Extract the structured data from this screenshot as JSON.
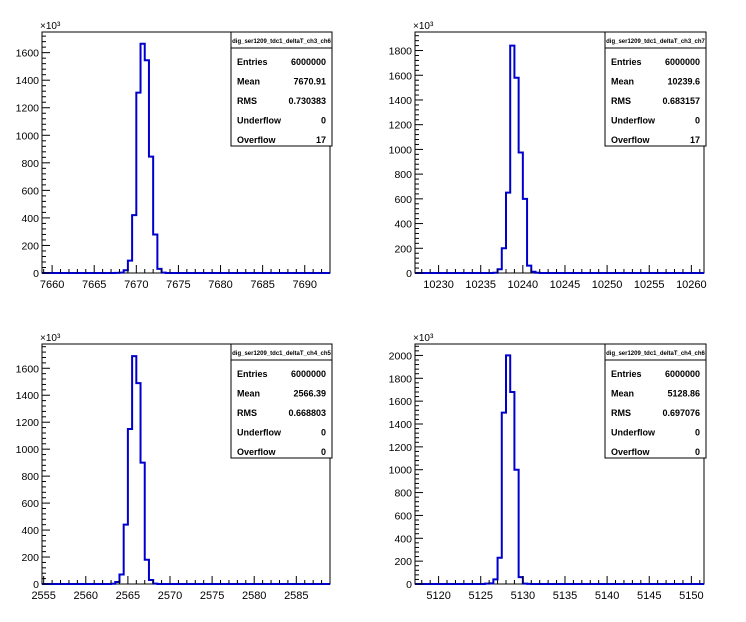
{
  "chart_data": [
    {
      "type": "histogram",
      "stats_title": "dig_ser1209_tdc1_deltaT_ch3_ch6",
      "stats": [
        {
          "label": "Entries",
          "value": "6000000"
        },
        {
          "label": "Mean",
          "value": "7670.91"
        },
        {
          "label": "RMS",
          "value": "0.730383"
        },
        {
          "label": "Underflow",
          "value": "0"
        },
        {
          "label": "Overflow",
          "value": "17"
        }
      ],
      "exponent_label": "×10³",
      "xlim": [
        7658.8,
        7693
      ],
      "ylim": [
        0,
        1750
      ],
      "x_ticks": [
        7660,
        7665,
        7670,
        7675,
        7680,
        7685,
        7690
      ],
      "x_tick_labels": [
        "7660",
        "7665",
        "7670",
        "7675",
        "7680",
        "7685",
        "7690"
      ],
      "y_ticks": [
        0,
        200,
        400,
        600,
        800,
        1000,
        1200,
        1400,
        1600
      ],
      "y_tick_labels": [
        "0",
        "200",
        "400",
        "600",
        "800",
        "1000",
        "1200",
        "1400",
        "1600"
      ],
      "bins": [
        {
          "x0": 7667.5,
          "x1": 7668.0,
          "y": 1
        },
        {
          "x0": 7668.0,
          "x1": 7668.5,
          "y": 3
        },
        {
          "x0": 7668.5,
          "x1": 7669.0,
          "y": 20
        },
        {
          "x0": 7669.0,
          "x1": 7669.5,
          "y": 90
        },
        {
          "x0": 7669.5,
          "x1": 7670.0,
          "y": 420
        },
        {
          "x0": 7670.0,
          "x1": 7670.5,
          "y": 1310
        },
        {
          "x0": 7670.5,
          "x1": 7671.0,
          "y": 1665
        },
        {
          "x0": 7671.0,
          "x1": 7671.5,
          "y": 1545
        },
        {
          "x0": 7671.5,
          "x1": 7672.0,
          "y": 845
        },
        {
          "x0": 7672.0,
          "x1": 7672.5,
          "y": 280
        },
        {
          "x0": 7672.5,
          "x1": 7673.0,
          "y": 30
        },
        {
          "x0": 7673.0,
          "x1": 7673.5,
          "y": 3
        }
      ]
    },
    {
      "type": "histogram",
      "stats_title": "dig_ser1209_tdc1_deltaT_ch3_ch7",
      "stats": [
        {
          "label": "Entries",
          "value": "6000000"
        },
        {
          "label": "Mean",
          "value": "10239.6"
        },
        {
          "label": "RMS",
          "value": "0.683157"
        },
        {
          "label": "Underflow",
          "value": "0"
        },
        {
          "label": "Overflow",
          "value": "17"
        }
      ],
      "exponent_label": "×10³",
      "xlim": [
        10227.2,
        10261.5
      ],
      "ylim": [
        0,
        1950
      ],
      "x_ticks": [
        10230,
        10235,
        10240,
        10245,
        10250,
        10255,
        10260
      ],
      "x_tick_labels": [
        "10230",
        "10235",
        "10240",
        "10245",
        "10250",
        "10255",
        "10260"
      ],
      "y_ticks": [
        0,
        200,
        400,
        600,
        800,
        1000,
        1200,
        1400,
        1600,
        1800
      ],
      "y_tick_labels": [
        "0",
        "200",
        "400",
        "600",
        "800",
        "1000",
        "1200",
        "1400",
        "1600",
        "1800"
      ],
      "bins": [
        {
          "x0": 10236.5,
          "x1": 10237.0,
          "y": 2
        },
        {
          "x0": 10237.0,
          "x1": 10237.5,
          "y": 30
        },
        {
          "x0": 10237.5,
          "x1": 10238.0,
          "y": 200
        },
        {
          "x0": 10238.0,
          "x1": 10238.5,
          "y": 650
        },
        {
          "x0": 10238.5,
          "x1": 10239.0,
          "y": 1840
        },
        {
          "x0": 10239.0,
          "x1": 10239.5,
          "y": 1580
        },
        {
          "x0": 10239.5,
          "x1": 10240.0,
          "y": 975
        },
        {
          "x0": 10240.0,
          "x1": 10240.5,
          "y": 600
        },
        {
          "x0": 10240.5,
          "x1": 10241.0,
          "y": 60
        },
        {
          "x0": 10241.0,
          "x1": 10241.5,
          "y": 10
        },
        {
          "x0": 10241.5,
          "x1": 10242.0,
          "y": 2
        }
      ]
    },
    {
      "type": "histogram",
      "stats_title": "dig_ser1209_tdc1_deltaT_ch4_ch5",
      "stats": [
        {
          "label": "Entries",
          "value": "6000000"
        },
        {
          "label": "Mean",
          "value": "2566.39"
        },
        {
          "label": "RMS",
          "value": "0.668803"
        },
        {
          "label": "Underflow",
          "value": "0"
        },
        {
          "label": "Overflow",
          "value": "0"
        }
      ],
      "exponent_label": "×10³",
      "xlim": [
        2554.8,
        2589
      ],
      "ylim": [
        0,
        1780
      ],
      "x_ticks": [
        2555,
        2560,
        2565,
        2570,
        2575,
        2580,
        2585
      ],
      "x_tick_labels": [
        "2555",
        "2560",
        "2565",
        "2570",
        "2575",
        "2580",
        "2585"
      ],
      "y_ticks": [
        0,
        200,
        400,
        600,
        800,
        1000,
        1200,
        1400,
        1600
      ],
      "y_tick_labels": [
        "0",
        "200",
        "400",
        "600",
        "800",
        "1000",
        "1200",
        "1400",
        "1600"
      ],
      "bins": [
        {
          "x0": 2563.0,
          "x1": 2563.5,
          "y": 2
        },
        {
          "x0": 2563.5,
          "x1": 2564.0,
          "y": 15
        },
        {
          "x0": 2564.0,
          "x1": 2564.5,
          "y": 70
        },
        {
          "x0": 2564.5,
          "x1": 2565.0,
          "y": 440
        },
        {
          "x0": 2565.0,
          "x1": 2565.5,
          "y": 1150
        },
        {
          "x0": 2565.5,
          "x1": 2566.0,
          "y": 1690
        },
        {
          "x0": 2566.0,
          "x1": 2566.5,
          "y": 1490
        },
        {
          "x0": 2566.5,
          "x1": 2567.0,
          "y": 900
        },
        {
          "x0": 2567.0,
          "x1": 2567.5,
          "y": 180
        },
        {
          "x0": 2567.5,
          "x1": 2568.0,
          "y": 30
        },
        {
          "x0": 2568.0,
          "x1": 2568.5,
          "y": 3
        }
      ]
    },
    {
      "type": "histogram",
      "stats_title": "dig_ser1209_tdc1_deltaT_ch4_ch6",
      "stats": [
        {
          "label": "Entries",
          "value": "6000000"
        },
        {
          "label": "Mean",
          "value": "5128.86"
        },
        {
          "label": "RMS",
          "value": "0.697076"
        },
        {
          "label": "Underflow",
          "value": "0"
        },
        {
          "label": "Overflow",
          "value": "0"
        }
      ],
      "exponent_label": "×10³",
      "xlim": [
        5117.2,
        5151.5
      ],
      "ylim": [
        0,
        2100
      ],
      "x_ticks": [
        5120,
        5125,
        5130,
        5135,
        5140,
        5145,
        5150
      ],
      "x_tick_labels": [
        "5120",
        "5125",
        "5130",
        "5135",
        "5140",
        "5145",
        "5150"
      ],
      "y_ticks": [
        0,
        200,
        400,
        600,
        800,
        1000,
        1200,
        1400,
        1600,
        1800,
        2000
      ],
      "y_tick_labels": [
        "0",
        "200",
        "400",
        "600",
        "800",
        "1000",
        "1200",
        "1400",
        "1600",
        "1800",
        "2000"
      ],
      "bins": [
        {
          "x0": 5125.5,
          "x1": 5126.0,
          "y": 3
        },
        {
          "x0": 5126.0,
          "x1": 5126.5,
          "y": 5
        },
        {
          "x0": 5126.5,
          "x1": 5127.0,
          "y": 40
        },
        {
          "x0": 5127.0,
          "x1": 5127.5,
          "y": 230
        },
        {
          "x0": 5127.5,
          "x1": 5128.0,
          "y": 1500
        },
        {
          "x0": 5128.0,
          "x1": 5128.5,
          "y": 2000
        },
        {
          "x0": 5128.5,
          "x1": 5129.0,
          "y": 1680
        },
        {
          "x0": 5129.0,
          "x1": 5129.5,
          "y": 1000
        },
        {
          "x0": 5129.5,
          "x1": 5130.0,
          "y": 60
        },
        {
          "x0": 5130.0,
          "x1": 5130.5,
          "y": 3
        },
        {
          "x0": 5130.5,
          "x1": 5131.0,
          "y": 1
        }
      ]
    }
  ],
  "colors": {
    "line": "#0000cc",
    "axis": "#000000",
    "background": "#ffffff"
  }
}
